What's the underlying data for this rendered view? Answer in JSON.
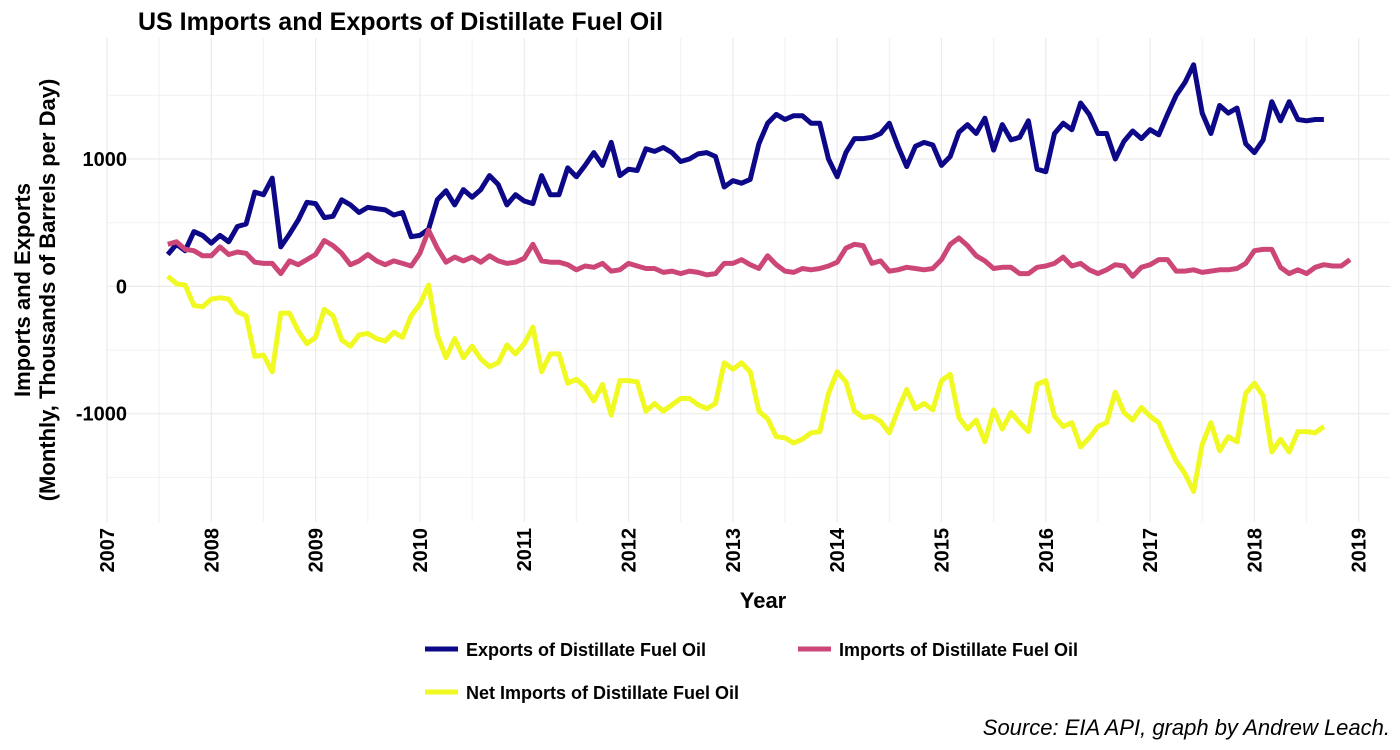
{
  "chart_data": {
    "type": "line",
    "title": "US Imports and Exports of Distillate Fuel Oil",
    "xlabel": "Year",
    "ylabel_line1": "Imports and Exports",
    "ylabel_line2": "(Monthly, Thousands of Barrels per Day)",
    "caption": "Source: EIA API, graph by Andrew Leach.",
    "xlim": [
      2007,
      2019.3
    ],
    "ylim": [
      -1850,
      1950
    ],
    "x_ticks": [
      "2007",
      "2008",
      "2009",
      "2010",
      "2011",
      "2012",
      "2013",
      "2014",
      "2015",
      "2016",
      "2017",
      "2018",
      "2019"
    ],
    "y_ticks": [
      {
        "value": 1000,
        "label": "1000"
      },
      {
        "value": 0,
        "label": "0"
      },
      {
        "value": -1000,
        "label": "-1000"
      }
    ],
    "grid": true,
    "legend_position": "bottom",
    "x_start": "2007-08",
    "series": [
      {
        "name": "Exports of Distillate Fuel Oil",
        "color": "#0d0887",
        "values": [
          250,
          330,
          280,
          430,
          400,
          340,
          400,
          350,
          470,
          490,
          740,
          720,
          850,
          310,
          410,
          520,
          660,
          650,
          540,
          550,
          680,
          640,
          580,
          620,
          610,
          600,
          560,
          580,
          390,
          400,
          450,
          680,
          750,
          640,
          760,
          700,
          760,
          870,
          800,
          640,
          720,
          670,
          650,
          870,
          720,
          720,
          930,
          860,
          950,
          1050,
          950,
          1130,
          870,
          920,
          910,
          1080,
          1060,
          1090,
          1050,
          980,
          1000,
          1040,
          1050,
          1020,
          780,
          830,
          810,
          840,
          1120,
          1280,
          1350,
          1310,
          1340,
          1340,
          1280,
          1280,
          1000,
          860,
          1050,
          1160,
          1160,
          1170,
          1200,
          1280,
          1100,
          940,
          1100,
          1130,
          1110,
          950,
          1020,
          1210,
          1270,
          1200,
          1320,
          1070,
          1270,
          1150,
          1170,
          1300,
          920,
          900,
          1200,
          1280,
          1230,
          1440,
          1350,
          1200,
          1200,
          1000,
          1140,
          1220,
          1160,
          1230,
          1190,
          1350,
          1500,
          1600,
          1740,
          1360,
          1200,
          1420,
          1360,
          1400,
          1120,
          1050,
          1150,
          1450,
          1300,
          1450,
          1310,
          1300,
          1310,
          1310
        ]
      },
      {
        "name": "Imports of Distillate Fuel Oil",
        "color": "#cc4778",
        "values": [
          330,
          350,
          290,
          280,
          240,
          240,
          310,
          250,
          270,
          260,
          190,
          180,
          180,
          100,
          200,
          170,
          210,
          250,
          360,
          320,
          260,
          170,
          200,
          250,
          200,
          170,
          200,
          180,
          160,
          260,
          440,
          300,
          190,
          230,
          200,
          230,
          190,
          240,
          200,
          180,
          190,
          220,
          330,
          200,
          190,
          190,
          170,
          130,
          160,
          150,
          180,
          120,
          130,
          180,
          160,
          140,
          140,
          110,
          120,
          100,
          120,
          110,
          90,
          100,
          180,
          180,
          210,
          170,
          140,
          240,
          170,
          120,
          110,
          140,
          130,
          140,
          160,
          190,
          300,
          330,
          320,
          180,
          200,
          120,
          130,
          150,
          140,
          130,
          140,
          210,
          330,
          380,
          320,
          240,
          200,
          140,
          150,
          150,
          100,
          100,
          150,
          160,
          180,
          230,
          160,
          180,
          130,
          100,
          130,
          170,
          160,
          80,
          150,
          170,
          210,
          210,
          120,
          120,
          130,
          110,
          120,
          130,
          130,
          140,
          180,
          280,
          290,
          290,
          150,
          100,
          130,
          100,
          150,
          170,
          160,
          160,
          210
        ]
      },
      {
        "name": "Net Imports of Distillate Fuel Oil",
        "color": "#f0f921",
        "values": [
          80,
          20,
          10,
          -150,
          -160,
          -100,
          -90,
          -100,
          -200,
          -230,
          -550,
          -540,
          -670,
          -210,
          -210,
          -350,
          -450,
          -400,
          -180,
          -230,
          -420,
          -470,
          -380,
          -370,
          -410,
          -430,
          -360,
          -400,
          -230,
          -140,
          10,
          -380,
          -560,
          -410,
          -560,
          -470,
          -570,
          -630,
          -600,
          -460,
          -530,
          -450,
          -320,
          -670,
          -530,
          -530,
          -760,
          -730,
          -790,
          -900,
          -770,
          -1010,
          -740,
          -740,
          -750,
          -980,
          -920,
          -980,
          -930,
          -880,
          -880,
          -930,
          -960,
          -920,
          -600,
          -650,
          -600,
          -670,
          -980,
          -1040,
          -1180,
          -1190,
          -1230,
          -1200,
          -1150,
          -1140,
          -840,
          -670,
          -750,
          -980,
          -1030,
          -1020,
          -1060,
          -1150,
          -970,
          -810,
          -960,
          -920,
          -970,
          -740,
          -690,
          -1030,
          -1120,
          -1050,
          -1220,
          -970,
          -1120,
          -990,
          -1070,
          -1140,
          -770,
          -740,
          -1020,
          -1100,
          -1070,
          -1260,
          -1190,
          -1100,
          -1070,
          -830,
          -990,
          -1050,
          -950,
          -1020,
          -1070,
          -1230,
          -1370,
          -1470,
          -1610,
          -1240,
          -1070,
          -1290,
          -1180,
          -1220,
          -840,
          -760,
          -860,
          -1300,
          -1200,
          -1300,
          -1140,
          -1140,
          -1150,
          -1100
        ]
      }
    ]
  }
}
